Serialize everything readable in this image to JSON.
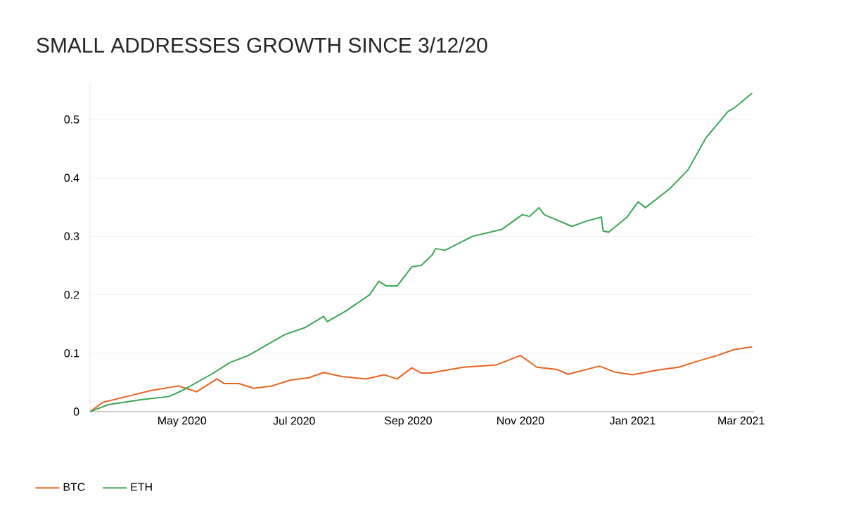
{
  "chart_data": {
    "type": "line",
    "title": "SMALL ADDRESSES GROWTH SINCE 3/12/20",
    "xlim": [
      "2020-03-12",
      "2021-03-08"
    ],
    "ylim": [
      0,
      0.56
    ],
    "xticks": [
      {
        "value": "2020-05-01",
        "label": "May 2020"
      },
      {
        "value": "2020-07-01",
        "label": "Jul 2020"
      },
      {
        "value": "2020-09-01",
        "label": "Sep 2020"
      },
      {
        "value": "2020-11-01",
        "label": "Nov 2020"
      },
      {
        "value": "2021-01-01",
        "label": "Jan 2021"
      },
      {
        "value": "2021-03-01",
        "label": "Mar 2021"
      }
    ],
    "yticks": [
      0,
      0.1,
      0.2,
      0.3,
      0.4,
      0.5
    ],
    "grid": "y",
    "legend": "bottom left",
    "line_style": "solid",
    "marker": "none",
    "series": [
      {
        "name": "BTC",
        "color": "#e8631f",
        "x": [
          "2020-03-12",
          "2020-03-19",
          "2020-04-01",
          "2020-04-14",
          "2020-04-29",
          "2020-05-09",
          "2020-05-20",
          "2020-05-24",
          "2020-06-01",
          "2020-06-09",
          "2020-06-19",
          "2020-06-29",
          "2020-07-09",
          "2020-07-17",
          "2020-07-27",
          "2020-08-09",
          "2020-08-19",
          "2020-08-26",
          "2020-09-03",
          "2020-09-08",
          "2020-09-13",
          "2020-10-01",
          "2020-10-19",
          "2020-11-01",
          "2020-11-10",
          "2020-11-21",
          "2020-11-27",
          "2020-12-14",
          "2020-12-22",
          "2021-01-01",
          "2021-01-14",
          "2021-01-26",
          "2021-02-06",
          "2021-02-16",
          "2021-02-25",
          "2021-03-07"
        ],
        "values": [
          0,
          0.016,
          0.026,
          0.036,
          0.044,
          0.034,
          0.056,
          0.048,
          0.048,
          0.04,
          0.044,
          0.054,
          0.058,
          0.067,
          0.06,
          0.056,
          0.063,
          0.056,
          0.075,
          0.066,
          0.066,
          0.076,
          0.08,
          0.096,
          0.076,
          0.072,
          0.064,
          0.078,
          0.068,
          0.063,
          0.071,
          0.076,
          0.087,
          0.096,
          0.106,
          0.111
        ]
      },
      {
        "name": "ETH",
        "color": "#3aa655",
        "x": [
          "2020-03-12",
          "2020-03-22",
          "2020-04-08",
          "2020-04-24",
          "2020-05-01",
          "2020-05-17",
          "2020-05-27",
          "2020-06-06",
          "2020-06-26",
          "2020-07-07",
          "2020-07-17",
          "2020-07-19",
          "2020-07-29",
          "2020-08-11",
          "2020-08-16",
          "2020-08-20",
          "2020-08-26",
          "2020-09-03",
          "2020-09-08",
          "2020-09-14",
          "2020-09-16",
          "2020-09-21",
          "2020-10-06",
          "2020-10-22",
          "2020-11-02",
          "2020-11-06",
          "2020-11-11",
          "2020-11-14",
          "2020-11-29",
          "2020-12-06",
          "2020-12-15",
          "2020-12-16",
          "2020-12-19",
          "2020-12-29",
          "2021-01-04",
          "2021-01-08",
          "2021-01-21",
          "2021-01-31",
          "2021-02-10",
          "2021-02-22",
          "2021-02-25",
          "2021-03-07"
        ],
        "values": [
          0,
          0.012,
          0.02,
          0.026,
          0.036,
          0.064,
          0.084,
          0.096,
          0.132,
          0.144,
          0.163,
          0.154,
          0.172,
          0.2,
          0.223,
          0.215,
          0.215,
          0.248,
          0.25,
          0.268,
          0.279,
          0.276,
          0.3,
          0.312,
          0.337,
          0.334,
          0.349,
          0.337,
          0.317,
          0.325,
          0.333,
          0.309,
          0.307,
          0.333,
          0.359,
          0.349,
          0.381,
          0.413,
          0.469,
          0.514,
          0.519,
          0.545
        ]
      }
    ]
  }
}
